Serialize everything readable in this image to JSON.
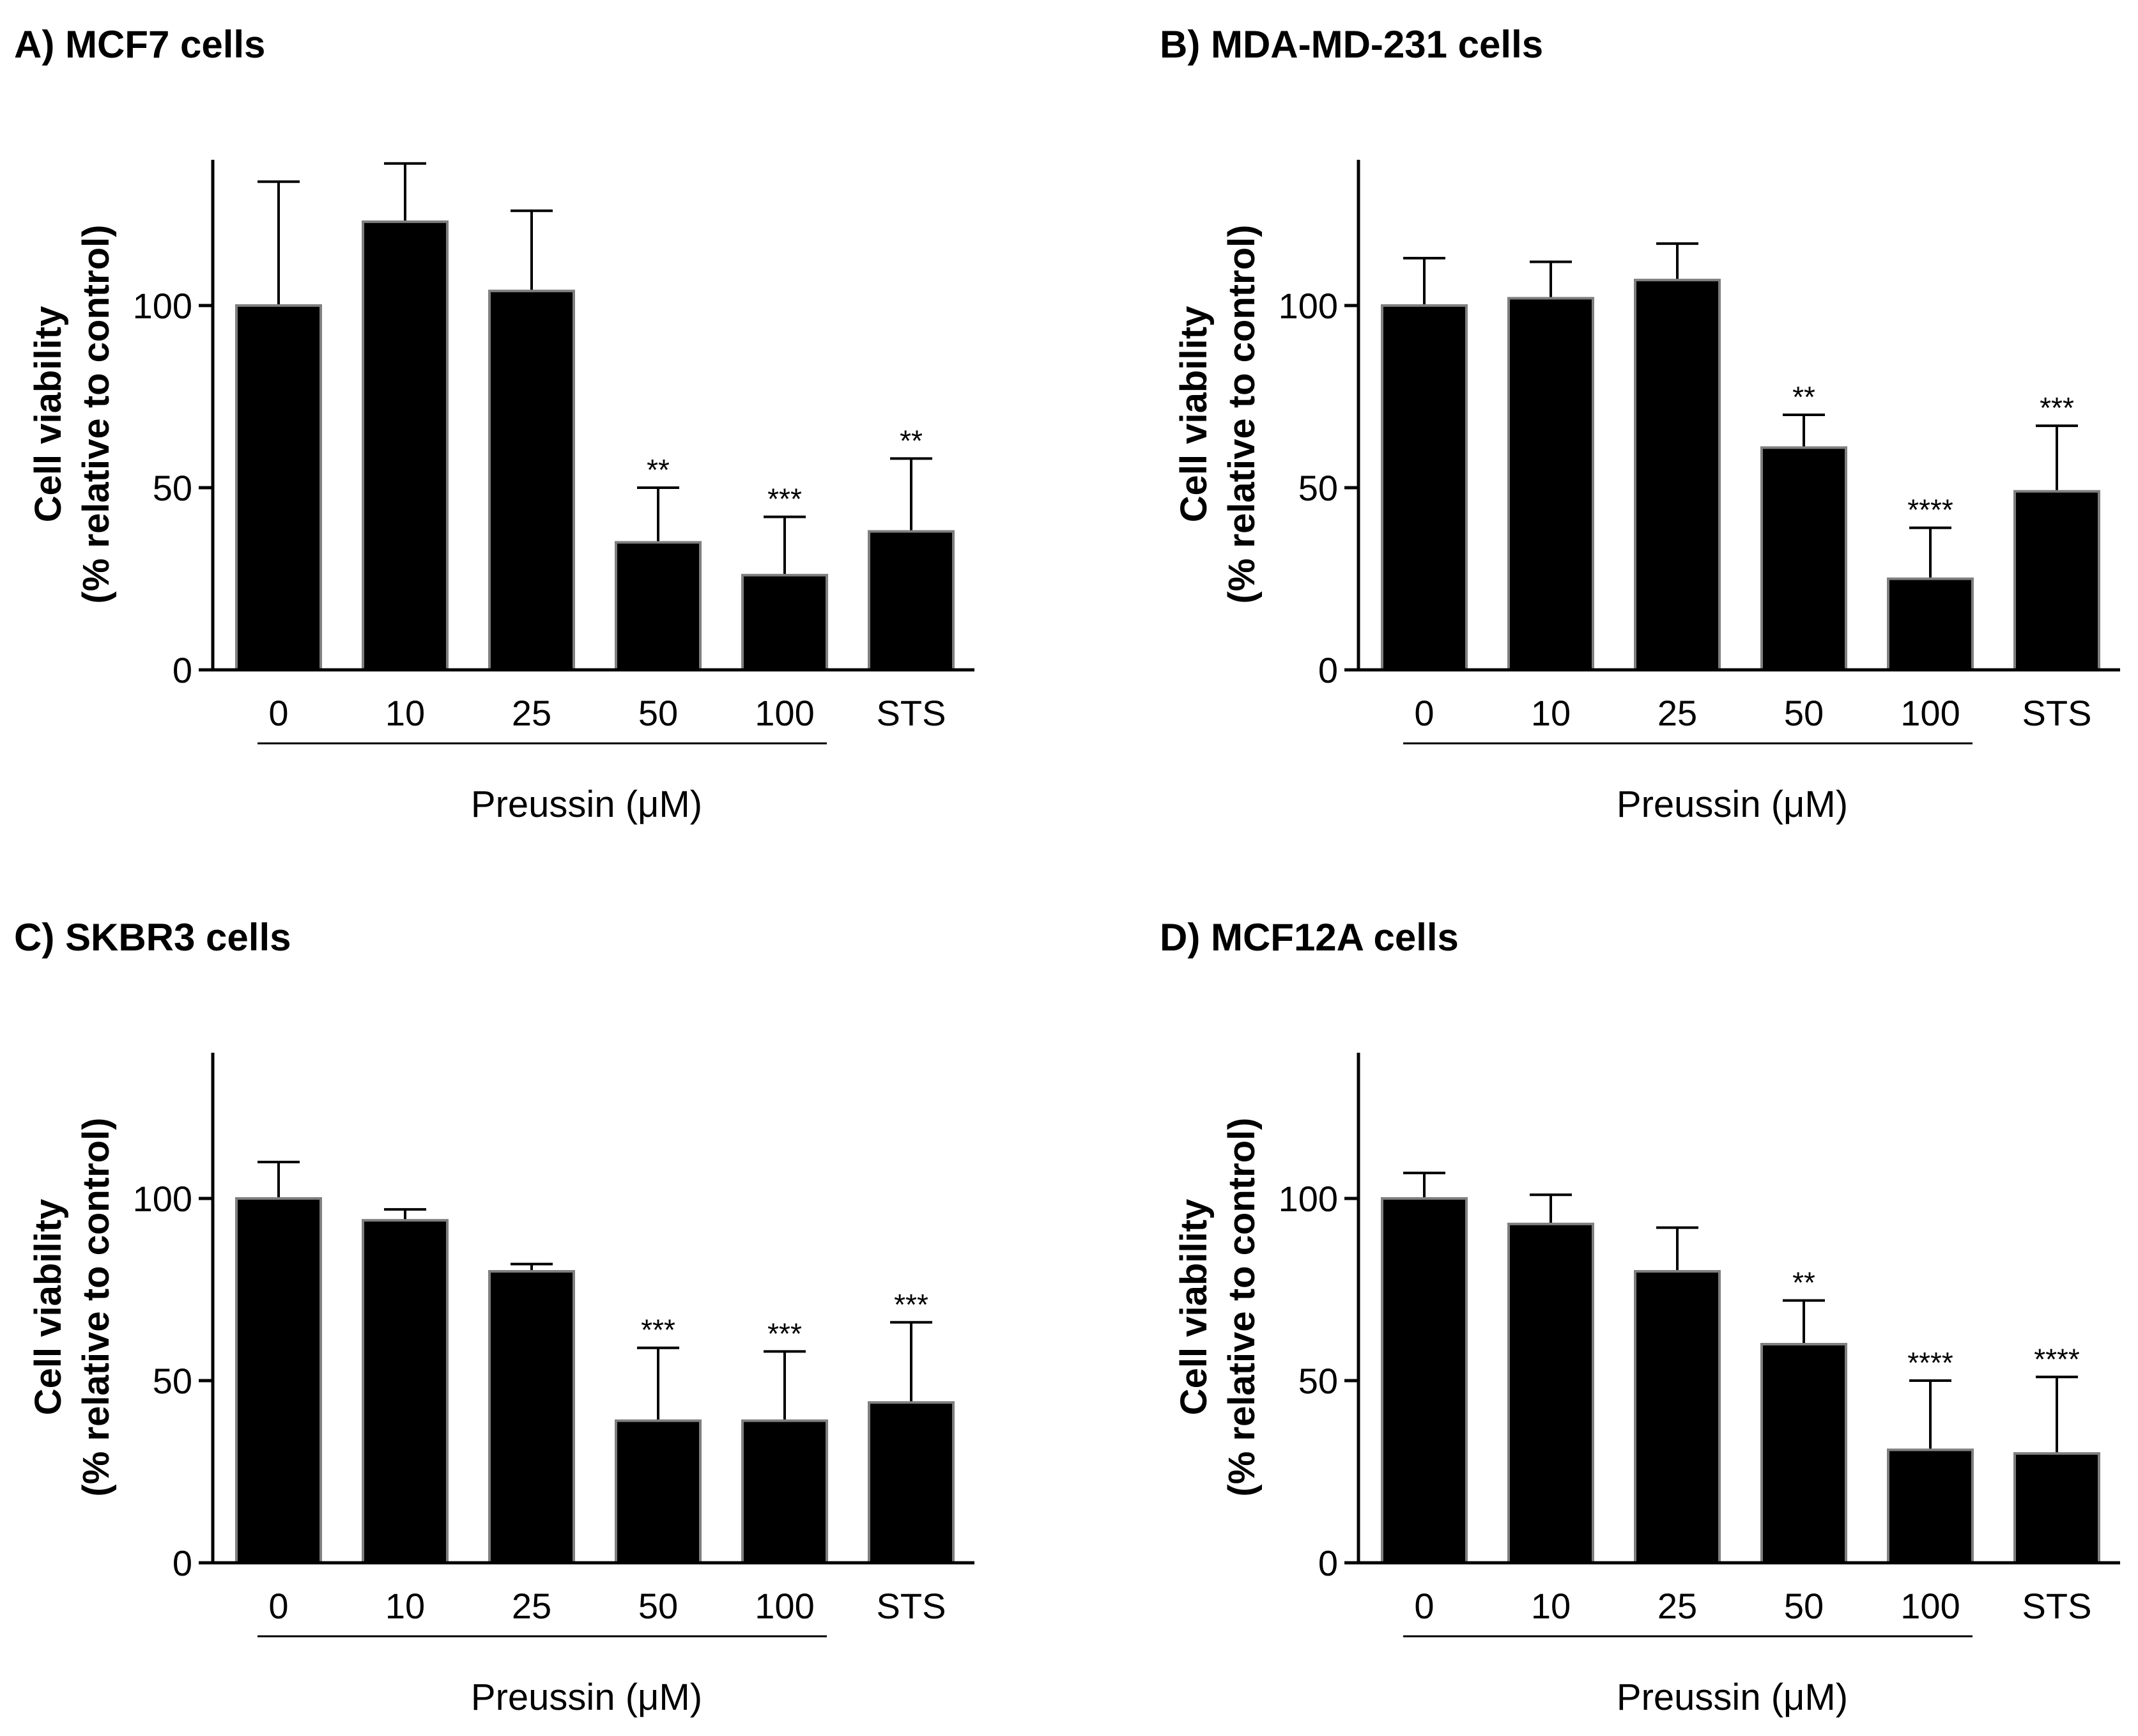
{
  "chart_data": [
    {
      "type": "bar",
      "title": "A) MCF7 cells",
      "ylabel_line1": "Cell viability",
      "ylabel_line2": "(% relative to control)",
      "xlabel": "Preussin (μM)",
      "categories": [
        "0",
        "10",
        "25",
        "50",
        "100",
        "STS"
      ],
      "values": [
        100,
        123,
        104,
        35,
        26,
        38
      ],
      "errors": [
        34,
        16,
        22,
        15,
        16,
        20
      ],
      "significance": [
        "",
        "",
        "",
        "**",
        "***",
        "**"
      ],
      "yticks": [
        0,
        50,
        100
      ],
      "ylim": [
        0,
        140
      ]
    },
    {
      "type": "bar",
      "title": "B) MDA-MD-231 cells",
      "ylabel_line1": "Cell viability",
      "ylabel_line2": "(% relative to control)",
      "xlabel": "Preussin (μM)",
      "categories": [
        "0",
        "10",
        "25",
        "50",
        "100",
        "STS"
      ],
      "values": [
        100,
        102,
        107,
        61,
        25,
        49
      ],
      "errors": [
        13,
        10,
        10,
        9,
        14,
        18
      ],
      "significance": [
        "",
        "",
        "",
        "**",
        "****",
        "***"
      ],
      "yticks": [
        0,
        50,
        100
      ],
      "ylim": [
        0,
        140
      ]
    },
    {
      "type": "bar",
      "title": "C) SKBR3 cells",
      "ylabel_line1": "Cell viability",
      "ylabel_line2": "(% relative to control)",
      "xlabel": "Preussin (μM)",
      "categories": [
        "0",
        "10",
        "25",
        "50",
        "100",
        "STS"
      ],
      "values": [
        100,
        94,
        80,
        39,
        39,
        44
      ],
      "errors": [
        10,
        3,
        2,
        20,
        19,
        22
      ],
      "significance": [
        "",
        "",
        "",
        "***",
        "***",
        "***"
      ],
      "yticks": [
        0,
        50,
        100
      ],
      "ylim": [
        0,
        140
      ]
    },
    {
      "type": "bar",
      "title": "D) MCF12A cells",
      "ylabel_line1": "Cell viability",
      "ylabel_line2": "(% relative to control)",
      "xlabel": "Preussin (μM)",
      "categories": [
        "0",
        "10",
        "25",
        "50",
        "100",
        "STS"
      ],
      "values": [
        100,
        93,
        80,
        60,
        31,
        30
      ],
      "errors": [
        7,
        8,
        12,
        12,
        19,
        21
      ],
      "significance": [
        "",
        "",
        "",
        "**",
        "****",
        "****"
      ],
      "yticks": [
        0,
        50,
        100
      ],
      "ylim": [
        0,
        140
      ]
    }
  ],
  "colors": {
    "bar": "#000000",
    "bar_edge": "#7f7f7f",
    "axis": "#000000"
  }
}
